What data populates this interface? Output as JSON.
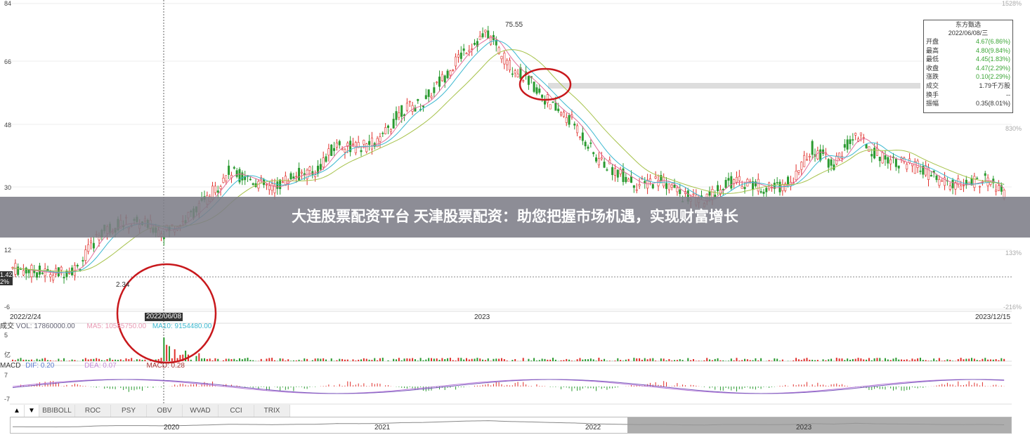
{
  "chart_data": {
    "type": "candlestick",
    "yticks": [
      "84",
      "66",
      "48",
      "30",
      "12",
      "-6"
    ],
    "pct_ticks": [
      "1528%",
      "830%",
      "133%",
      "-216%"
    ],
    "xticks": [
      "2022/2/24",
      "2023",
      "2023/12/15"
    ],
    "ylim": [
      -6,
      84
    ],
    "close": [
      6.1,
      5.1,
      4.5,
      6.1,
      16.2,
      19.3,
      19.3,
      16.7,
      20.3,
      26.3,
      34.4,
      32.4,
      29.4,
      33.4,
      34.4,
      42.5,
      41.5,
      43.5,
      52.6,
      54.7,
      62.8,
      70.9,
      75,
      65.8,
      60.7,
      53.6,
      48.6,
      38.5,
      34.4,
      30.4,
      32.4,
      27.4,
      25.4,
      31.4,
      31.4,
      29.4,
      31.4,
      41.5,
      36.5,
      45.5,
      39.5,
      37.5,
      35.4,
      31.4,
      30.4,
      32.4,
      27.4
    ],
    "annotations": {
      "high": "75.55",
      "low": "2.34",
      "cursor_date": "2022/06/08",
      "left_price": "1.42",
      "left_pct": "2%"
    },
    "colors": {
      "up": "#e0302c",
      "down": "#2a9a30",
      "ma5": "#e36e9a",
      "ma10": "#3bb8d0",
      "ma20": "#a6c24a",
      "circle": "#c8181c"
    }
  },
  "info": {
    "title": "东方甄选",
    "date": "2022/06/08/三",
    "rows": [
      {
        "k": "开盘",
        "v": "4.67(6.86%)",
        "green": true
      },
      {
        "k": "最高",
        "v": "4.80(9.84%)",
        "green": true
      },
      {
        "k": "最低",
        "v": "4.45(1.83%)",
        "green": true
      },
      {
        "k": "收盘",
        "v": "4.47(2.29%)",
        "green": true
      },
      {
        "k": "涨跌",
        "v": "0.10(2.29%)",
        "green": true
      },
      {
        "k": "成交",
        "v": "1.79千万股",
        "green": false
      },
      {
        "k": "换手",
        "v": "--",
        "green": false
      },
      {
        "k": "振幅",
        "v": "0.35(8.01%)",
        "green": false
      }
    ]
  },
  "volume": {
    "label": "成交",
    "vol": "VOL: 17860000.00",
    "ma5": "MA5: 10585750.00",
    "ma10": "MA10: 9154480.00",
    "ytop": "5",
    "unit": "亿"
  },
  "macd": {
    "label": "MACD",
    "dif": "DIF: 0.20",
    "dea": "DEA: 0.07",
    "macd": "MACD: 0.28",
    "ytop": "7",
    "ybot": "-7"
  },
  "tabs": [
    "BBIBOLL",
    "ROC",
    "PSY",
    "OBV",
    "WVAD",
    "CCI",
    "TRIX"
  ],
  "nav_years": [
    "2020",
    "2021",
    "2022",
    "2023"
  ],
  "banner": "大连股票配资平台 天津股票配资：助您把握市场机遇，实现财富增长"
}
